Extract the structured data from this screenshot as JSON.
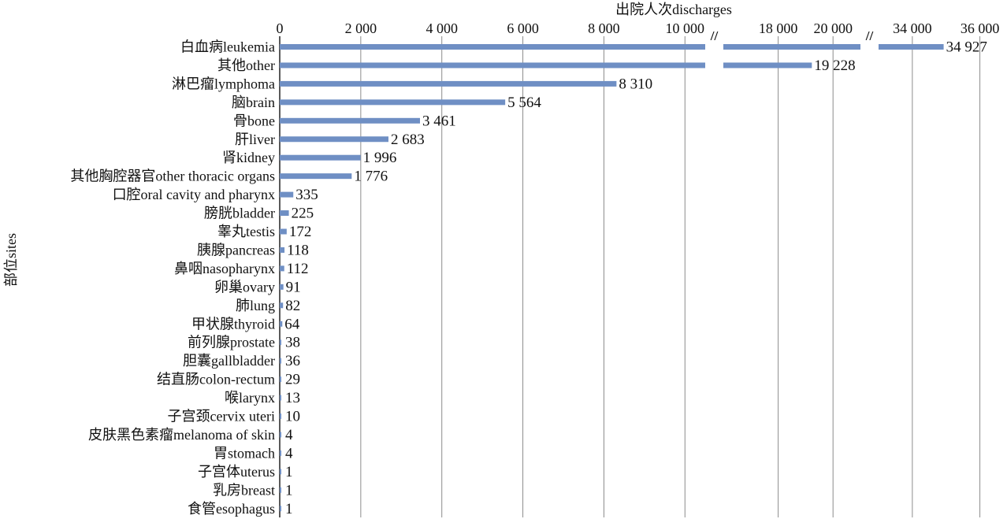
{
  "chart_data": {
    "type": "bar",
    "orientation": "horizontal",
    "title": "出院人次discharges",
    "xlabel": "出院人次discharges",
    "ylabel": "部位sites",
    "color": "#6f8fc4",
    "grid": true,
    "axis_break": {
      "segments": [
        [
          0,
          10500
        ],
        [
          16000,
          21000
        ],
        [
          33000,
          36500
        ]
      ],
      "ticks": [
        [
          "0",
          "2 000",
          "4 000",
          "6 000",
          "8 000",
          "10 000"
        ],
        [
          "18 000",
          "20 000"
        ],
        [
          "34 000",
          "36 000"
        ]
      ],
      "tick_values": [
        [
          0,
          2000,
          4000,
          6000,
          8000,
          10000
        ],
        [
          18000,
          20000
        ],
        [
          34000,
          36000
        ]
      ],
      "break_marks": [
        "//",
        "//"
      ]
    },
    "categories": [
      "白血病leukemia",
      "其他other",
      "淋巴瘤lymphoma",
      "脑brain",
      "骨bone",
      "肝liver",
      "肾kidney",
      "其他胸腔器官other thoracic organs",
      "口腔oral cavity and pharynx",
      "膀胱bladder",
      "睾丸testis",
      "胰腺pancreas",
      "鼻咽nasopharynx",
      "卵巢ovary",
      "肺lung",
      "甲状腺thyroid",
      "前列腺prostate",
      "胆囊gallbladder",
      "结直肠colon-rectum",
      "喉larynx",
      "子宫颈cervix uteri",
      "皮肤黑色素瘤melanoma of skin",
      "胃stomach",
      "子宫体uterus",
      "乳房breast",
      "食管esophagus"
    ],
    "values": [
      34927,
      19228,
      8310,
      5564,
      3461,
      2683,
      1996,
      1776,
      335,
      225,
      172,
      118,
      112,
      91,
      82,
      64,
      38,
      36,
      29,
      13,
      10,
      4,
      4,
      1,
      1,
      1
    ],
    "value_labels": [
      "34 927",
      "19 228",
      "8 310",
      "5 564",
      "3 461",
      "2 683",
      "1 996",
      "1 776",
      "335",
      "225",
      "172",
      "118",
      "112",
      "91",
      "82",
      "64",
      "38",
      "36",
      "29",
      "13",
      "10",
      "4",
      "4",
      "1",
      "1",
      "1"
    ]
  }
}
